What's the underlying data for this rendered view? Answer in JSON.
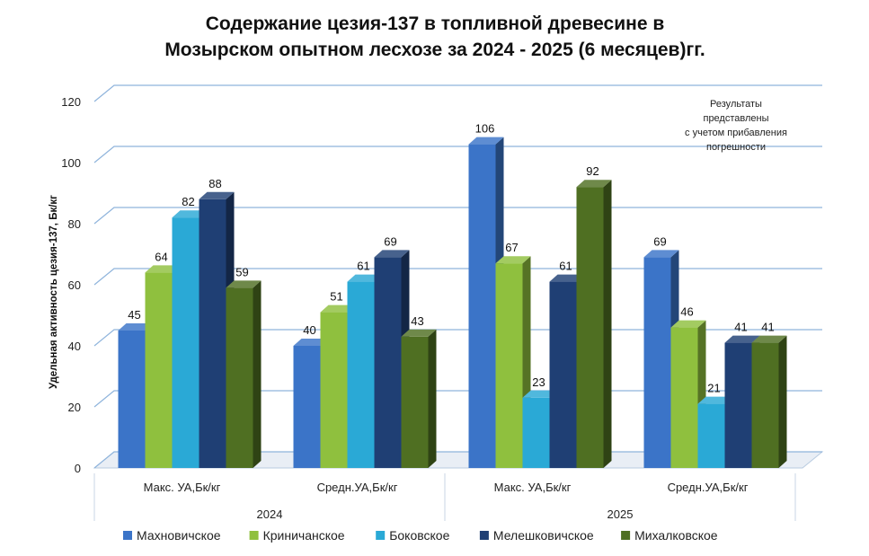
{
  "chart_data": {
    "type": "bar",
    "title_lines": [
      "Содержание цезия-137 в топливной древесине в",
      "Мозырском опытном лесхозе за 2024 - 2025 (6 месяцев)гг."
    ],
    "ylabel": "Удельная активность цезия-137, Бк/кг",
    "ylim": [
      0,
      120
    ],
    "yticks": [
      "0",
      "20",
      "40",
      "60",
      "80",
      "100",
      "120"
    ],
    "groups": [
      {
        "label": "Макс. УА,Бк/кг",
        "year": "2024"
      },
      {
        "label": "Средн.УА,Бк/кг",
        "year": "2024"
      },
      {
        "label": "Макс. УА,Бк/кг",
        "year": "2025"
      },
      {
        "label": "Средн.УА,Бк/кг",
        "year": "2025"
      }
    ],
    "years": [
      "2024",
      "2025"
    ],
    "series": [
      {
        "name": "Махновичское",
        "color": "#3b74c8",
        "values": [
          45,
          40,
          106,
          69
        ]
      },
      {
        "name": "Криничанское",
        "color": "#8fc03e",
        "values": [
          64,
          51,
          67,
          46
        ]
      },
      {
        "name": "Боковское",
        "color": "#2aa9d6",
        "values": [
          82,
          61,
          23,
          21
        ]
      },
      {
        "name": "Мелешковичское",
        "color": "#1f3f74",
        "values": [
          88,
          69,
          61,
          41
        ]
      },
      {
        "name": "Михалковское",
        "color": "#4f6f22",
        "values": [
          59,
          43,
          92,
          41
        ]
      }
    ],
    "note_lines": [
      "Результаты",
      "представлены",
      "с учетом прибавления",
      "погрешности"
    ],
    "legend_position": "bottom",
    "grid": true
  }
}
